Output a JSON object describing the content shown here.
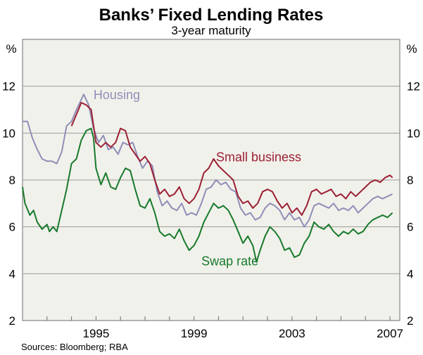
{
  "chart_data": {
    "type": "line",
    "title": "Banks’ Fixed Lending Rates",
    "subtitle": "3-year maturity",
    "ylabel_left": "%",
    "ylabel_right": "%",
    "xlim": [
      1992.0,
      2007.4
    ],
    "ylim": [
      2,
      14
    ],
    "yticks": [
      2,
      4,
      6,
      8,
      10,
      12
    ],
    "xticks": [
      {
        "value": 1995,
        "label": "1995"
      },
      {
        "value": 1999,
        "label": "1999"
      },
      {
        "value": 2003,
        "label": "2003"
      },
      {
        "value": 2007,
        "label": "2007"
      }
    ],
    "source": "Sources: Bloomberg; RBA",
    "series": [
      {
        "name": "Housing",
        "color": "#8e8eb8",
        "label_x": 1994.9,
        "label_y": 11.45,
        "points": [
          [
            1992.0,
            10.5
          ],
          [
            1992.2,
            10.5
          ],
          [
            1992.4,
            9.8
          ],
          [
            1992.6,
            9.3
          ],
          [
            1992.8,
            8.9
          ],
          [
            1993.0,
            8.8
          ],
          [
            1993.2,
            8.8
          ],
          [
            1993.4,
            8.7
          ],
          [
            1993.6,
            9.2
          ],
          [
            1993.8,
            10.3
          ],
          [
            1994.0,
            10.5
          ],
          [
            1994.2,
            11.0
          ],
          [
            1994.5,
            11.65
          ],
          [
            1994.7,
            11.2
          ],
          [
            1994.9,
            10.2
          ],
          [
            1995.1,
            9.6
          ],
          [
            1995.3,
            9.9
          ],
          [
            1995.5,
            9.3
          ],
          [
            1995.7,
            9.4
          ],
          [
            1995.9,
            9.1
          ],
          [
            1996.1,
            9.6
          ],
          [
            1996.3,
            9.5
          ],
          [
            1996.5,
            9.6
          ],
          [
            1996.7,
            9.0
          ],
          [
            1996.9,
            8.5
          ],
          [
            1997.1,
            8.8
          ],
          [
            1997.3,
            8.6
          ],
          [
            1997.5,
            7.5
          ],
          [
            1997.7,
            6.9
          ],
          [
            1997.9,
            7.1
          ],
          [
            1998.1,
            6.8
          ],
          [
            1998.3,
            6.7
          ],
          [
            1998.5,
            7.0
          ],
          [
            1998.7,
            6.5
          ],
          [
            1998.9,
            6.6
          ],
          [
            1999.1,
            6.5
          ],
          [
            1999.3,
            7.0
          ],
          [
            1999.5,
            7.6
          ],
          [
            1999.7,
            7.7
          ],
          [
            1999.9,
            8.0
          ],
          [
            2000.1,
            7.8
          ],
          [
            2000.3,
            7.9
          ],
          [
            2000.5,
            7.6
          ],
          [
            2000.7,
            7.5
          ],
          [
            2000.9,
            6.8
          ],
          [
            2001.1,
            6.5
          ],
          [
            2001.3,
            6.6
          ],
          [
            2001.5,
            6.3
          ],
          [
            2001.7,
            6.4
          ],
          [
            2001.9,
            6.8
          ],
          [
            2002.1,
            7.0
          ],
          [
            2002.3,
            6.9
          ],
          [
            2002.5,
            6.7
          ],
          [
            2002.7,
            6.3
          ],
          [
            2002.9,
            6.6
          ],
          [
            2003.1,
            6.3
          ],
          [
            2003.3,
            6.4
          ],
          [
            2003.5,
            6.0
          ],
          [
            2003.7,
            6.3
          ],
          [
            2003.9,
            6.9
          ],
          [
            2004.1,
            7.0
          ],
          [
            2004.3,
            6.9
          ],
          [
            2004.5,
            6.8
          ],
          [
            2004.7,
            7.0
          ],
          [
            2004.9,
            6.7
          ],
          [
            2005.1,
            6.8
          ],
          [
            2005.3,
            6.7
          ],
          [
            2005.5,
            6.9
          ],
          [
            2005.7,
            6.6
          ],
          [
            2005.9,
            6.8
          ],
          [
            2006.1,
            7.0
          ],
          [
            2006.3,
            7.2
          ],
          [
            2006.5,
            7.3
          ],
          [
            2006.7,
            7.2
          ],
          [
            2006.9,
            7.3
          ],
          [
            2007.1,
            7.4
          ]
        ]
      },
      {
        "name": "Small business",
        "color": "#9b2033",
        "label_x": 1999.9,
        "label_y": 8.8,
        "points": [
          [
            1994.0,
            10.3
          ],
          [
            1994.2,
            10.8
          ],
          [
            1994.4,
            11.3
          ],
          [
            1994.6,
            11.2
          ],
          [
            1994.8,
            11.0
          ],
          [
            1995.0,
            9.6
          ],
          [
            1995.2,
            9.4
          ],
          [
            1995.4,
            9.6
          ],
          [
            1995.6,
            9.4
          ],
          [
            1995.8,
            9.6
          ],
          [
            1996.0,
            10.2
          ],
          [
            1996.2,
            10.1
          ],
          [
            1996.4,
            9.4
          ],
          [
            1996.6,
            9.1
          ],
          [
            1996.8,
            8.8
          ],
          [
            1997.0,
            9.0
          ],
          [
            1997.2,
            8.7
          ],
          [
            1997.4,
            8.0
          ],
          [
            1997.6,
            7.4
          ],
          [
            1997.8,
            7.6
          ],
          [
            1998.0,
            7.3
          ],
          [
            1998.2,
            7.4
          ],
          [
            1998.4,
            7.7
          ],
          [
            1998.6,
            7.2
          ],
          [
            1998.8,
            7.0
          ],
          [
            1999.0,
            7.2
          ],
          [
            1999.2,
            7.6
          ],
          [
            1999.4,
            8.3
          ],
          [
            1999.6,
            8.5
          ],
          [
            1999.8,
            8.9
          ],
          [
            2000.0,
            8.6
          ],
          [
            2000.2,
            8.4
          ],
          [
            2000.4,
            8.2
          ],
          [
            2000.6,
            8.0
          ],
          [
            2000.8,
            7.3
          ],
          [
            2001.0,
            7.0
          ],
          [
            2001.2,
            7.1
          ],
          [
            2001.4,
            6.8
          ],
          [
            2001.6,
            7.0
          ],
          [
            2001.8,
            7.5
          ],
          [
            2002.0,
            7.6
          ],
          [
            2002.2,
            7.5
          ],
          [
            2002.4,
            7.1
          ],
          [
            2002.6,
            6.8
          ],
          [
            2002.8,
            7.0
          ],
          [
            2003.0,
            6.6
          ],
          [
            2003.2,
            6.8
          ],
          [
            2003.4,
            6.5
          ],
          [
            2003.6,
            6.9
          ],
          [
            2003.8,
            7.5
          ],
          [
            2004.0,
            7.6
          ],
          [
            2004.2,
            7.4
          ],
          [
            2004.4,
            7.5
          ],
          [
            2004.6,
            7.6
          ],
          [
            2004.8,
            7.3
          ],
          [
            2005.0,
            7.4
          ],
          [
            2005.2,
            7.2
          ],
          [
            2005.4,
            7.5
          ],
          [
            2005.6,
            7.3
          ],
          [
            2005.8,
            7.5
          ],
          [
            2006.0,
            7.7
          ],
          [
            2006.2,
            7.9
          ],
          [
            2006.4,
            8.0
          ],
          [
            2006.6,
            7.9
          ],
          [
            2006.8,
            8.1
          ],
          [
            2007.0,
            8.2
          ],
          [
            2007.1,
            8.1
          ]
        ]
      },
      {
        "name": "Swap rate",
        "color": "#177a2b",
        "label_x": 1999.3,
        "label_y": 4.35,
        "points": [
          [
            1992.0,
            7.7
          ],
          [
            1992.1,
            7.0
          ],
          [
            1992.3,
            6.5
          ],
          [
            1992.45,
            6.7
          ],
          [
            1992.6,
            6.2
          ],
          [
            1992.8,
            5.9
          ],
          [
            1993.0,
            6.1
          ],
          [
            1993.1,
            5.8
          ],
          [
            1993.25,
            6.0
          ],
          [
            1993.4,
            5.8
          ],
          [
            1993.6,
            6.7
          ],
          [
            1993.8,
            7.6
          ],
          [
            1994.0,
            8.7
          ],
          [
            1994.2,
            8.9
          ],
          [
            1994.4,
            9.7
          ],
          [
            1994.6,
            10.1
          ],
          [
            1994.8,
            10.2
          ],
          [
            1994.9,
            9.8
          ],
          [
            1995.0,
            8.5
          ],
          [
            1995.2,
            7.8
          ],
          [
            1995.4,
            8.3
          ],
          [
            1995.6,
            7.7
          ],
          [
            1995.8,
            7.6
          ],
          [
            1996.0,
            8.1
          ],
          [
            1996.2,
            8.5
          ],
          [
            1996.4,
            8.4
          ],
          [
            1996.6,
            7.6
          ],
          [
            1996.8,
            6.9
          ],
          [
            1997.0,
            6.8
          ],
          [
            1997.2,
            7.2
          ],
          [
            1997.4,
            6.6
          ],
          [
            1997.6,
            5.8
          ],
          [
            1997.8,
            5.6
          ],
          [
            1998.0,
            5.7
          ],
          [
            1998.2,
            5.5
          ],
          [
            1998.4,
            5.9
          ],
          [
            1998.6,
            5.4
          ],
          [
            1998.8,
            5.0
          ],
          [
            1999.0,
            5.2
          ],
          [
            1999.2,
            5.6
          ],
          [
            1999.4,
            6.2
          ],
          [
            1999.6,
            6.6
          ],
          [
            1999.8,
            7.0
          ],
          [
            2000.0,
            6.8
          ],
          [
            2000.2,
            6.9
          ],
          [
            2000.4,
            6.7
          ],
          [
            2000.6,
            6.3
          ],
          [
            2000.8,
            5.8
          ],
          [
            2001.0,
            5.3
          ],
          [
            2001.2,
            5.6
          ],
          [
            2001.4,
            5.2
          ],
          [
            2001.55,
            4.5
          ],
          [
            2001.7,
            5.0
          ],
          [
            2001.9,
            5.6
          ],
          [
            2002.1,
            6.0
          ],
          [
            2002.3,
            5.8
          ],
          [
            2002.5,
            5.5
          ],
          [
            2002.7,
            5.0
          ],
          [
            2002.9,
            5.1
          ],
          [
            2003.1,
            4.7
          ],
          [
            2003.3,
            4.8
          ],
          [
            2003.5,
            5.3
          ],
          [
            2003.7,
            5.6
          ],
          [
            2003.9,
            6.2
          ],
          [
            2004.1,
            6.0
          ],
          [
            2004.3,
            5.9
          ],
          [
            2004.5,
            6.1
          ],
          [
            2004.7,
            5.8
          ],
          [
            2004.9,
            5.6
          ],
          [
            2005.1,
            5.8
          ],
          [
            2005.3,
            5.7
          ],
          [
            2005.5,
            5.9
          ],
          [
            2005.7,
            5.7
          ],
          [
            2005.9,
            5.8
          ],
          [
            2006.1,
            6.1
          ],
          [
            2006.3,
            6.3
          ],
          [
            2006.5,
            6.4
          ],
          [
            2006.7,
            6.5
          ],
          [
            2006.9,
            6.4
          ],
          [
            2007.1,
            6.6
          ]
        ]
      }
    ]
  }
}
